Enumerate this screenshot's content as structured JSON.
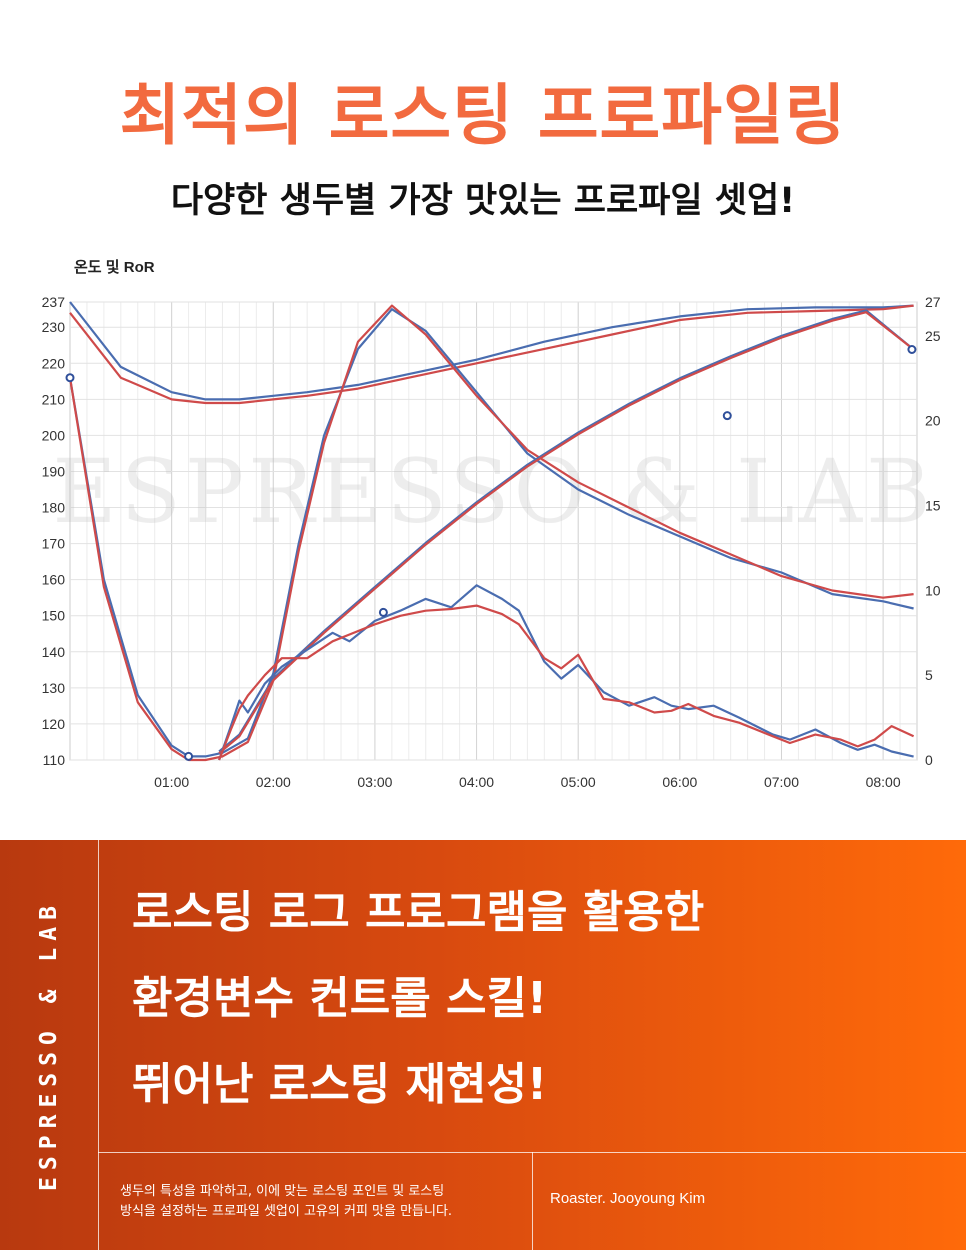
{
  "header": {
    "title": "최적의 로스팅 프로파일링",
    "subtitle": "다양한 생두별 가장 맛있는 프로파일 셋업!"
  },
  "chart_data": {
    "type": "line",
    "title": "온도 및 RoR",
    "watermark": "ESPRESSO & LAB",
    "xlabel": "",
    "ylabel": "",
    "x_ticks": [
      "01:00",
      "02:00",
      "03:00",
      "04:00",
      "05:00",
      "06:00",
      "07:00",
      "08:00"
    ],
    "y_left_ticks": [
      237,
      230,
      220,
      210,
      200,
      190,
      180,
      170,
      160,
      150,
      140,
      130,
      120,
      110
    ],
    "y_right_ticks": [
      27,
      25,
      20,
      15,
      10,
      5,
      0
    ],
    "xlim_seconds": [
      0,
      500
    ],
    "ylim_left": [
      110,
      237
    ],
    "ylim_right": [
      0,
      27
    ],
    "grid": true,
    "colors": {
      "series_a": "#4a6db0",
      "series_b": "#cf4a4a"
    },
    "series": [
      {
        "axis": "left",
        "color": "#4a6db0",
        "x": [
          0,
          30,
          60,
          80,
          100,
          120,
          140,
          170,
          200,
          240,
          280,
          320,
          360,
          400,
          440,
          480,
          498
        ],
        "y": [
          237,
          219,
          212,
          210,
          210,
          211,
          212,
          214,
          217,
          221,
          226,
          230,
          233,
          235,
          235.5,
          235.5,
          236
        ]
      },
      {
        "axis": "left",
        "color": "#cf4a4a",
        "x": [
          0,
          30,
          60,
          80,
          100,
          120,
          140,
          170,
          200,
          240,
          280,
          320,
          360,
          400,
          440,
          480,
          498
        ],
        "y": [
          234,
          216,
          210,
          209,
          209,
          210,
          211,
          213,
          216,
          220,
          224,
          228,
          232,
          234,
          234.5,
          235,
          236
        ]
      },
      {
        "axis": "left",
        "color": "#4a6db0",
        "x": [
          0,
          20,
          40,
          60,
          70,
          80,
          90,
          105,
          120,
          135,
          150,
          170,
          190,
          210,
          240,
          270,
          300,
          330,
          360,
          390,
          420,
          450,
          480,
          498
        ],
        "y": [
          216,
          160,
          128,
          114,
          111,
          111,
          112,
          116,
          134,
          170,
          200,
          224,
          235,
          229,
          212,
          195,
          185,
          178,
          172,
          166,
          162,
          156,
          154,
          152
        ]
      },
      {
        "axis": "left",
        "color": "#cf4a4a",
        "x": [
          0,
          20,
          40,
          60,
          70,
          80,
          90,
          105,
          120,
          135,
          150,
          170,
          190,
          210,
          240,
          270,
          300,
          330,
          360,
          390,
          420,
          450,
          480,
          498
        ],
        "y": [
          216,
          158,
          126,
          113,
          110,
          110,
          111,
          115,
          132,
          168,
          198,
          226,
          236,
          228,
          211,
          196,
          187,
          180,
          173,
          167,
          161,
          157,
          155,
          156
        ]
      },
      {
        "axis": "right",
        "color": "#4a6db0",
        "x": [
          88,
          100,
          120,
          150,
          180,
          210,
          240,
          270,
          300,
          330,
          360,
          390,
          420,
          450,
          470,
          498
        ],
        "y": [
          0.5,
          1.5,
          4.8,
          7.6,
          10.2,
          12.8,
          15.2,
          17.4,
          19.3,
          21.0,
          22.5,
          23.8,
          25.0,
          26.0,
          26.5,
          24.2
        ]
      },
      {
        "axis": "right",
        "color": "#cf4a4a",
        "x": [
          88,
          100,
          120,
          150,
          180,
          210,
          240,
          270,
          300,
          330,
          360,
          390,
          420,
          450,
          470,
          498
        ],
        "y": [
          0.4,
          1.4,
          4.7,
          7.5,
          10.1,
          12.7,
          15.1,
          17.3,
          19.2,
          20.9,
          22.4,
          23.7,
          24.9,
          25.9,
          26.4,
          24.2
        ]
      },
      {
        "axis": "right",
        "color": "#4a6db0",
        "x": [
          88,
          95,
          100,
          105,
          115,
          125,
          140,
          155,
          165,
          180,
          195,
          210,
          225,
          240,
          255,
          265,
          280,
          290,
          300,
          315,
          330,
          345,
          355,
          365,
          380,
          395,
          415,
          425,
          440,
          455,
          465,
          475,
          485,
          498
        ],
        "y": [
          0,
          2,
          3.5,
          2.8,
          4.5,
          5.5,
          6.5,
          7.5,
          7,
          8.2,
          8.8,
          9.5,
          9,
          10.3,
          9.5,
          8.8,
          5.8,
          4.8,
          5.6,
          4.0,
          3.2,
          3.7,
          3.2,
          3.0,
          3.2,
          2.5,
          1.5,
          1.2,
          1.8,
          1.0,
          0.6,
          0.9,
          0.5,
          0.2
        ]
      },
      {
        "axis": "right",
        "color": "#cf4a4a",
        "x": [
          88,
          95,
          100,
          105,
          115,
          125,
          140,
          155,
          165,
          180,
          195,
          210,
          225,
          240,
          255,
          265,
          280,
          290,
          300,
          315,
          330,
          345,
          355,
          365,
          380,
          395,
          415,
          425,
          440,
          455,
          465,
          475,
          485,
          498
        ],
        "y": [
          0,
          1.8,
          3.0,
          3.8,
          5.0,
          6.0,
          6.0,
          7.0,
          7.4,
          8.0,
          8.5,
          8.8,
          8.9,
          9.1,
          8.6,
          8.0,
          6.0,
          5.4,
          6.2,
          3.6,
          3.4,
          2.8,
          2.9,
          3.3,
          2.6,
          2.2,
          1.4,
          1.0,
          1.5,
          1.2,
          0.8,
          1.2,
          2.0,
          1.4
        ]
      }
    ],
    "markers": [
      {
        "axis": "left",
        "x": 0,
        "y": 216
      },
      {
        "axis": "left",
        "x": 70,
        "y": 111
      },
      {
        "axis": "right",
        "x": 185,
        "y": 8.7
      },
      {
        "axis": "right",
        "x": 388,
        "y": 20.3
      },
      {
        "axis": "right",
        "x": 497,
        "y": 24.2
      }
    ]
  },
  "promo": {
    "side_text": "ESPRESSO & LAB",
    "headline_lines": [
      "로스팅 로그 프로그램을 활용한",
      "환경변수 컨트롤 스킬!",
      "뛰어난 로스팅 재현성!"
    ],
    "description_lines": [
      "생두의 특성을 파악하고, 이에 맞는 로스팅 포인트 및 로스팅",
      "방식을 설정하는 프로파일 셋업이 고유의 커피 맛을 만듭니다."
    ],
    "roaster": "Roaster. Jooyoung Kim"
  }
}
